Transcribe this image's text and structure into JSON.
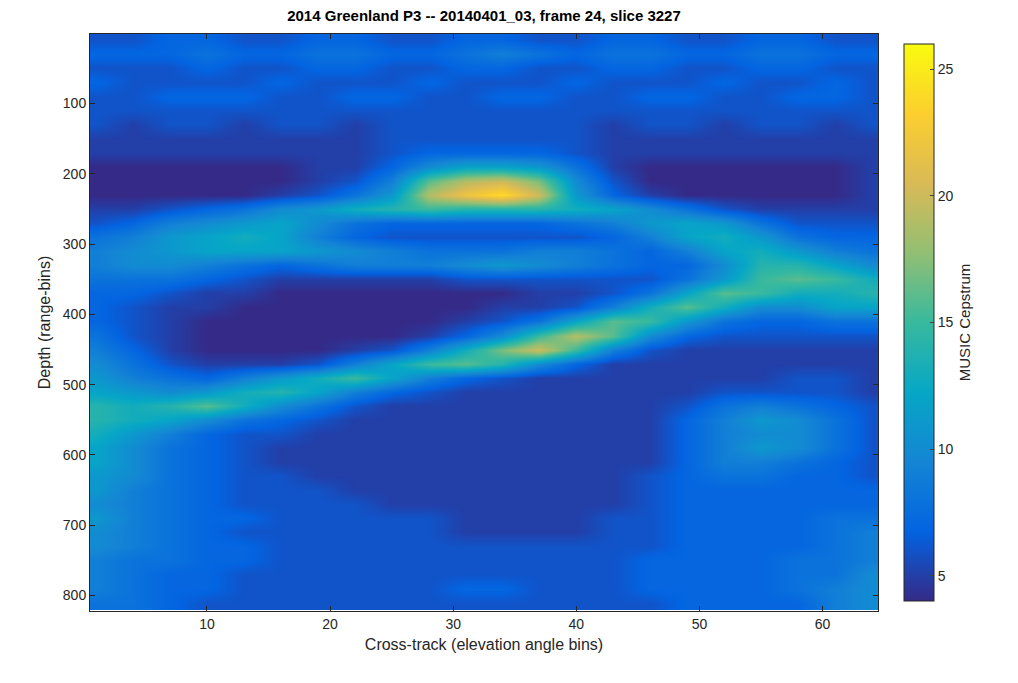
{
  "chart_data": {
    "type": "heatmap",
    "title": "2014 Greenland P3 -- 20140401_03, frame 24, slice 3227",
    "x_label": "Cross-track (elevation angle bins)",
    "y_label": "Depth (range-bins)",
    "xlim": [
      0.5,
      64.5
    ],
    "xticks": [
      10,
      20,
      30,
      40,
      50,
      60
    ],
    "ylim": [
      822,
      1
    ],
    "yticks": [
      100,
      200,
      300,
      400,
      500,
      600,
      700,
      800
    ],
    "grid": false,
    "colorbar_label": "MUSIC Cepstrum",
    "colorbar_range": [
      4,
      26
    ],
    "colorbar_ticks": [
      5,
      10,
      15,
      20,
      25
    ],
    "x": [
      1,
      4,
      7,
      10,
      13,
      16,
      19,
      22,
      25,
      28,
      31,
      34,
      37,
      40,
      43,
      46,
      49,
      52,
      55,
      58,
      61,
      64
    ],
    "y": [
      10,
      30,
      50,
      70,
      90,
      110,
      130,
      150,
      170,
      190,
      210,
      230,
      250,
      270,
      290,
      310,
      330,
      350,
      370,
      390,
      410,
      430,
      450,
      470,
      490,
      510,
      530,
      550,
      570,
      590,
      610,
      630,
      650,
      670,
      690,
      710,
      730,
      750,
      770,
      790,
      810
    ],
    "values": [
      [
        6,
        6,
        7,
        7,
        6,
        6,
        7,
        7,
        6,
        6,
        7,
        7,
        6,
        6,
        7,
        7,
        6,
        6,
        7,
        7,
        6,
        6
      ],
      [
        7,
        7,
        7,
        8,
        7,
        7,
        8,
        8,
        7,
        7,
        8,
        9,
        8,
        7,
        8,
        8,
        7,
        7,
        8,
        8,
        7,
        7
      ],
      [
        6,
        6,
        6,
        7,
        6,
        6,
        7,
        7,
        6,
        6,
        7,
        7,
        6,
        6,
        7,
        7,
        6,
        6,
        7,
        7,
        6,
        6
      ],
      [
        7,
        6,
        6,
        6,
        6,
        7,
        6,
        6,
        6,
        7,
        6,
        6,
        6,
        7,
        6,
        6,
        6,
        7,
        6,
        6,
        7,
        6
      ],
      [
        6,
        6,
        7,
        7,
        7,
        6,
        6,
        7,
        7,
        6,
        6,
        7,
        7,
        6,
        6,
        7,
        7,
        6,
        6,
        7,
        7,
        6
      ],
      [
        6,
        6,
        6,
        6,
        6,
        6,
        6,
        6,
        6,
        6,
        6,
        6,
        6,
        6,
        6,
        6,
        6,
        6,
        6,
        6,
        6,
        6
      ],
      [
        6,
        5,
        6,
        6,
        5,
        6,
        6,
        5,
        6,
        6,
        6,
        6,
        6,
        6,
        5,
        6,
        6,
        5,
        6,
        6,
        5,
        6
      ],
      [
        5,
        5,
        5,
        5,
        5,
        5,
        5,
        5,
        6,
        6,
        6,
        6,
        6,
        6,
        5,
        5,
        5,
        5,
        5,
        5,
        5,
        5
      ],
      [
        5,
        5,
        5,
        5,
        5,
        5,
        5,
        5,
        6,
        7,
        7,
        7,
        7,
        6,
        5,
        5,
        5,
        5,
        5,
        5,
        5,
        5
      ],
      [
        4,
        4,
        4,
        4,
        4,
        4,
        5,
        5,
        7,
        10,
        12,
        12,
        11,
        8,
        5,
        4,
        4,
        4,
        4,
        4,
        4,
        5
      ],
      [
        4,
        4,
        4,
        4,
        4,
        4,
        5,
        6,
        9,
        16,
        19,
        20,
        17,
        10,
        6,
        4,
        4,
        4,
        4,
        4,
        4,
        5
      ],
      [
        4,
        4,
        4,
        4,
        4,
        5,
        6,
        8,
        11,
        19,
        22,
        24,
        20,
        11,
        7,
        5,
        4,
        4,
        4,
        4,
        4,
        5
      ],
      [
        5,
        5,
        6,
        7,
        8,
        10,
        11,
        13,
        14,
        15,
        14,
        14,
        14,
        13,
        12,
        10,
        8,
        6,
        5,
        5,
        5,
        5
      ],
      [
        6,
        7,
        9,
        10,
        11,
        12,
        10,
        8,
        7,
        7,
        7,
        7,
        7,
        8,
        9,
        11,
        12,
        11,
        8,
        6,
        6,
        6
      ],
      [
        8,
        9,
        11,
        12,
        13,
        12,
        9,
        7,
        6,
        6,
        6,
        6,
        6,
        6,
        7,
        9,
        12,
        13,
        11,
        8,
        7,
        7
      ],
      [
        9,
        10,
        11,
        12,
        12,
        12,
        11,
        10,
        9,
        8,
        8,
        8,
        9,
        9,
        8,
        7,
        9,
        12,
        13,
        11,
        9,
        8
      ],
      [
        9,
        10,
        10,
        9,
        8,
        7,
        8,
        9,
        9,
        9,
        10,
        11,
        10,
        9,
        8,
        7,
        7,
        10,
        14,
        14,
        12,
        10
      ],
      [
        8,
        8,
        8,
        7,
        6,
        5,
        5,
        5,
        5,
        5,
        6,
        6,
        6,
        6,
        6,
        6,
        8,
        11,
        15,
        16,
        15,
        13
      ],
      [
        7,
        7,
        6,
        5,
        5,
        4,
        4,
        4,
        4,
        4,
        4,
        4,
        5,
        5,
        6,
        8,
        12,
        16,
        15,
        13,
        13,
        14
      ],
      [
        7,
        6,
        5,
        5,
        4,
        4,
        4,
        4,
        4,
        4,
        4,
        5,
        5,
        6,
        9,
        13,
        16,
        13,
        10,
        10,
        12,
        12
      ],
      [
        7,
        6,
        5,
        4,
        4,
        4,
        4,
        4,
        4,
        4,
        5,
        6,
        8,
        12,
        16,
        15,
        11,
        8,
        7,
        7,
        8,
        8
      ],
      [
        8,
        6,
        5,
        4,
        4,
        4,
        4,
        4,
        4,
        5,
        7,
        10,
        15,
        19,
        16,
        10,
        7,
        6,
        6,
        6,
        6,
        6
      ],
      [
        9,
        7,
        5,
        4,
        4,
        4,
        4,
        5,
        6,
        9,
        13,
        17,
        20,
        15,
        9,
        6,
        5,
        5,
        5,
        5,
        5,
        5
      ],
      [
        10,
        8,
        6,
        5,
        5,
        5,
        6,
        9,
        12,
        15,
        16,
        14,
        10,
        7,
        5,
        5,
        5,
        5,
        5,
        5,
        5,
        5
      ],
      [
        11,
        9,
        8,
        7,
        9,
        11,
        13,
        15,
        12,
        9,
        7,
        6,
        5,
        5,
        5,
        5,
        5,
        5,
        5,
        6,
        6,
        5
      ],
      [
        12,
        11,
        10,
        11,
        13,
        14,
        12,
        9,
        7,
        6,
        5,
        5,
        5,
        5,
        5,
        5,
        5,
        6,
        6,
        6,
        6,
        5
      ],
      [
        14,
        13,
        14,
        16,
        13,
        10,
        8,
        6,
        5,
        5,
        5,
        5,
        5,
        5,
        5,
        5,
        6,
        8,
        9,
        8,
        7,
        6
      ],
      [
        14,
        13,
        12,
        10,
        8,
        7,
        6,
        5,
        5,
        5,
        5,
        5,
        5,
        5,
        5,
        5,
        7,
        9,
        11,
        10,
        8,
        6
      ],
      [
        13,
        11,
        9,
        7,
        6,
        6,
        5,
        5,
        5,
        5,
        5,
        5,
        5,
        5,
        5,
        5,
        7,
        9,
        10,
        10,
        8,
        6
      ],
      [
        12,
        10,
        8,
        7,
        6,
        5,
        5,
        5,
        5,
        5,
        5,
        5,
        5,
        5,
        5,
        5,
        7,
        9,
        11,
        10,
        8,
        6
      ],
      [
        12,
        10,
        8,
        7,
        6,
        5,
        5,
        5,
        5,
        5,
        5,
        5,
        5,
        5,
        5,
        5,
        7,
        9,
        9,
        8,
        7,
        6
      ],
      [
        11,
        10,
        8,
        7,
        6,
        6,
        5,
        5,
        5,
        5,
        5,
        5,
        5,
        5,
        5,
        6,
        7,
        8,
        8,
        7,
        7,
        6
      ],
      [
        11,
        9,
        8,
        7,
        6,
        6,
        6,
        5,
        5,
        5,
        5,
        5,
        5,
        5,
        5,
        6,
        7,
        7,
        7,
        7,
        7,
        7
      ],
      [
        10,
        9,
        8,
        7,
        6,
        6,
        6,
        6,
        5,
        5,
        5,
        5,
        5,
        5,
        5,
        6,
        7,
        7,
        7,
        7,
        7,
        7
      ],
      [
        11,
        9,
        8,
        7,
        7,
        6,
        6,
        6,
        6,
        6,
        5,
        5,
        5,
        5,
        6,
        6,
        7,
        7,
        7,
        7,
        8,
        8
      ],
      [
        10,
        9,
        8,
        7,
        6,
        6,
        6,
        6,
        6,
        6,
        5,
        5,
        5,
        5,
        6,
        6,
        7,
        7,
        7,
        7,
        8,
        9
      ],
      [
        10,
        9,
        8,
        7,
        7,
        6,
        6,
        6,
        6,
        6,
        6,
        6,
        6,
        6,
        6,
        6,
        7,
        7,
        7,
        7,
        8,
        9
      ],
      [
        9,
        8,
        8,
        7,
        7,
        6,
        6,
        6,
        6,
        6,
        6,
        6,
        6,
        6,
        6,
        7,
        7,
        7,
        7,
        8,
        8,
        9
      ],
      [
        9,
        8,
        7,
        7,
        6,
        6,
        6,
        6,
        6,
        6,
        6,
        6,
        6,
        6,
        6,
        7,
        7,
        7,
        7,
        8,
        8,
        10
      ],
      [
        9,
        8,
        7,
        7,
        6,
        6,
        6,
        6,
        6,
        6,
        7,
        7,
        6,
        6,
        6,
        7,
        7,
        7,
        7,
        8,
        9,
        10
      ],
      [
        8,
        8,
        7,
        6,
        6,
        6,
        6,
        6,
        6,
        6,
        6,
        6,
        6,
        6,
        6,
        6,
        7,
        7,
        7,
        7,
        9,
        10
      ]
    ]
  }
}
